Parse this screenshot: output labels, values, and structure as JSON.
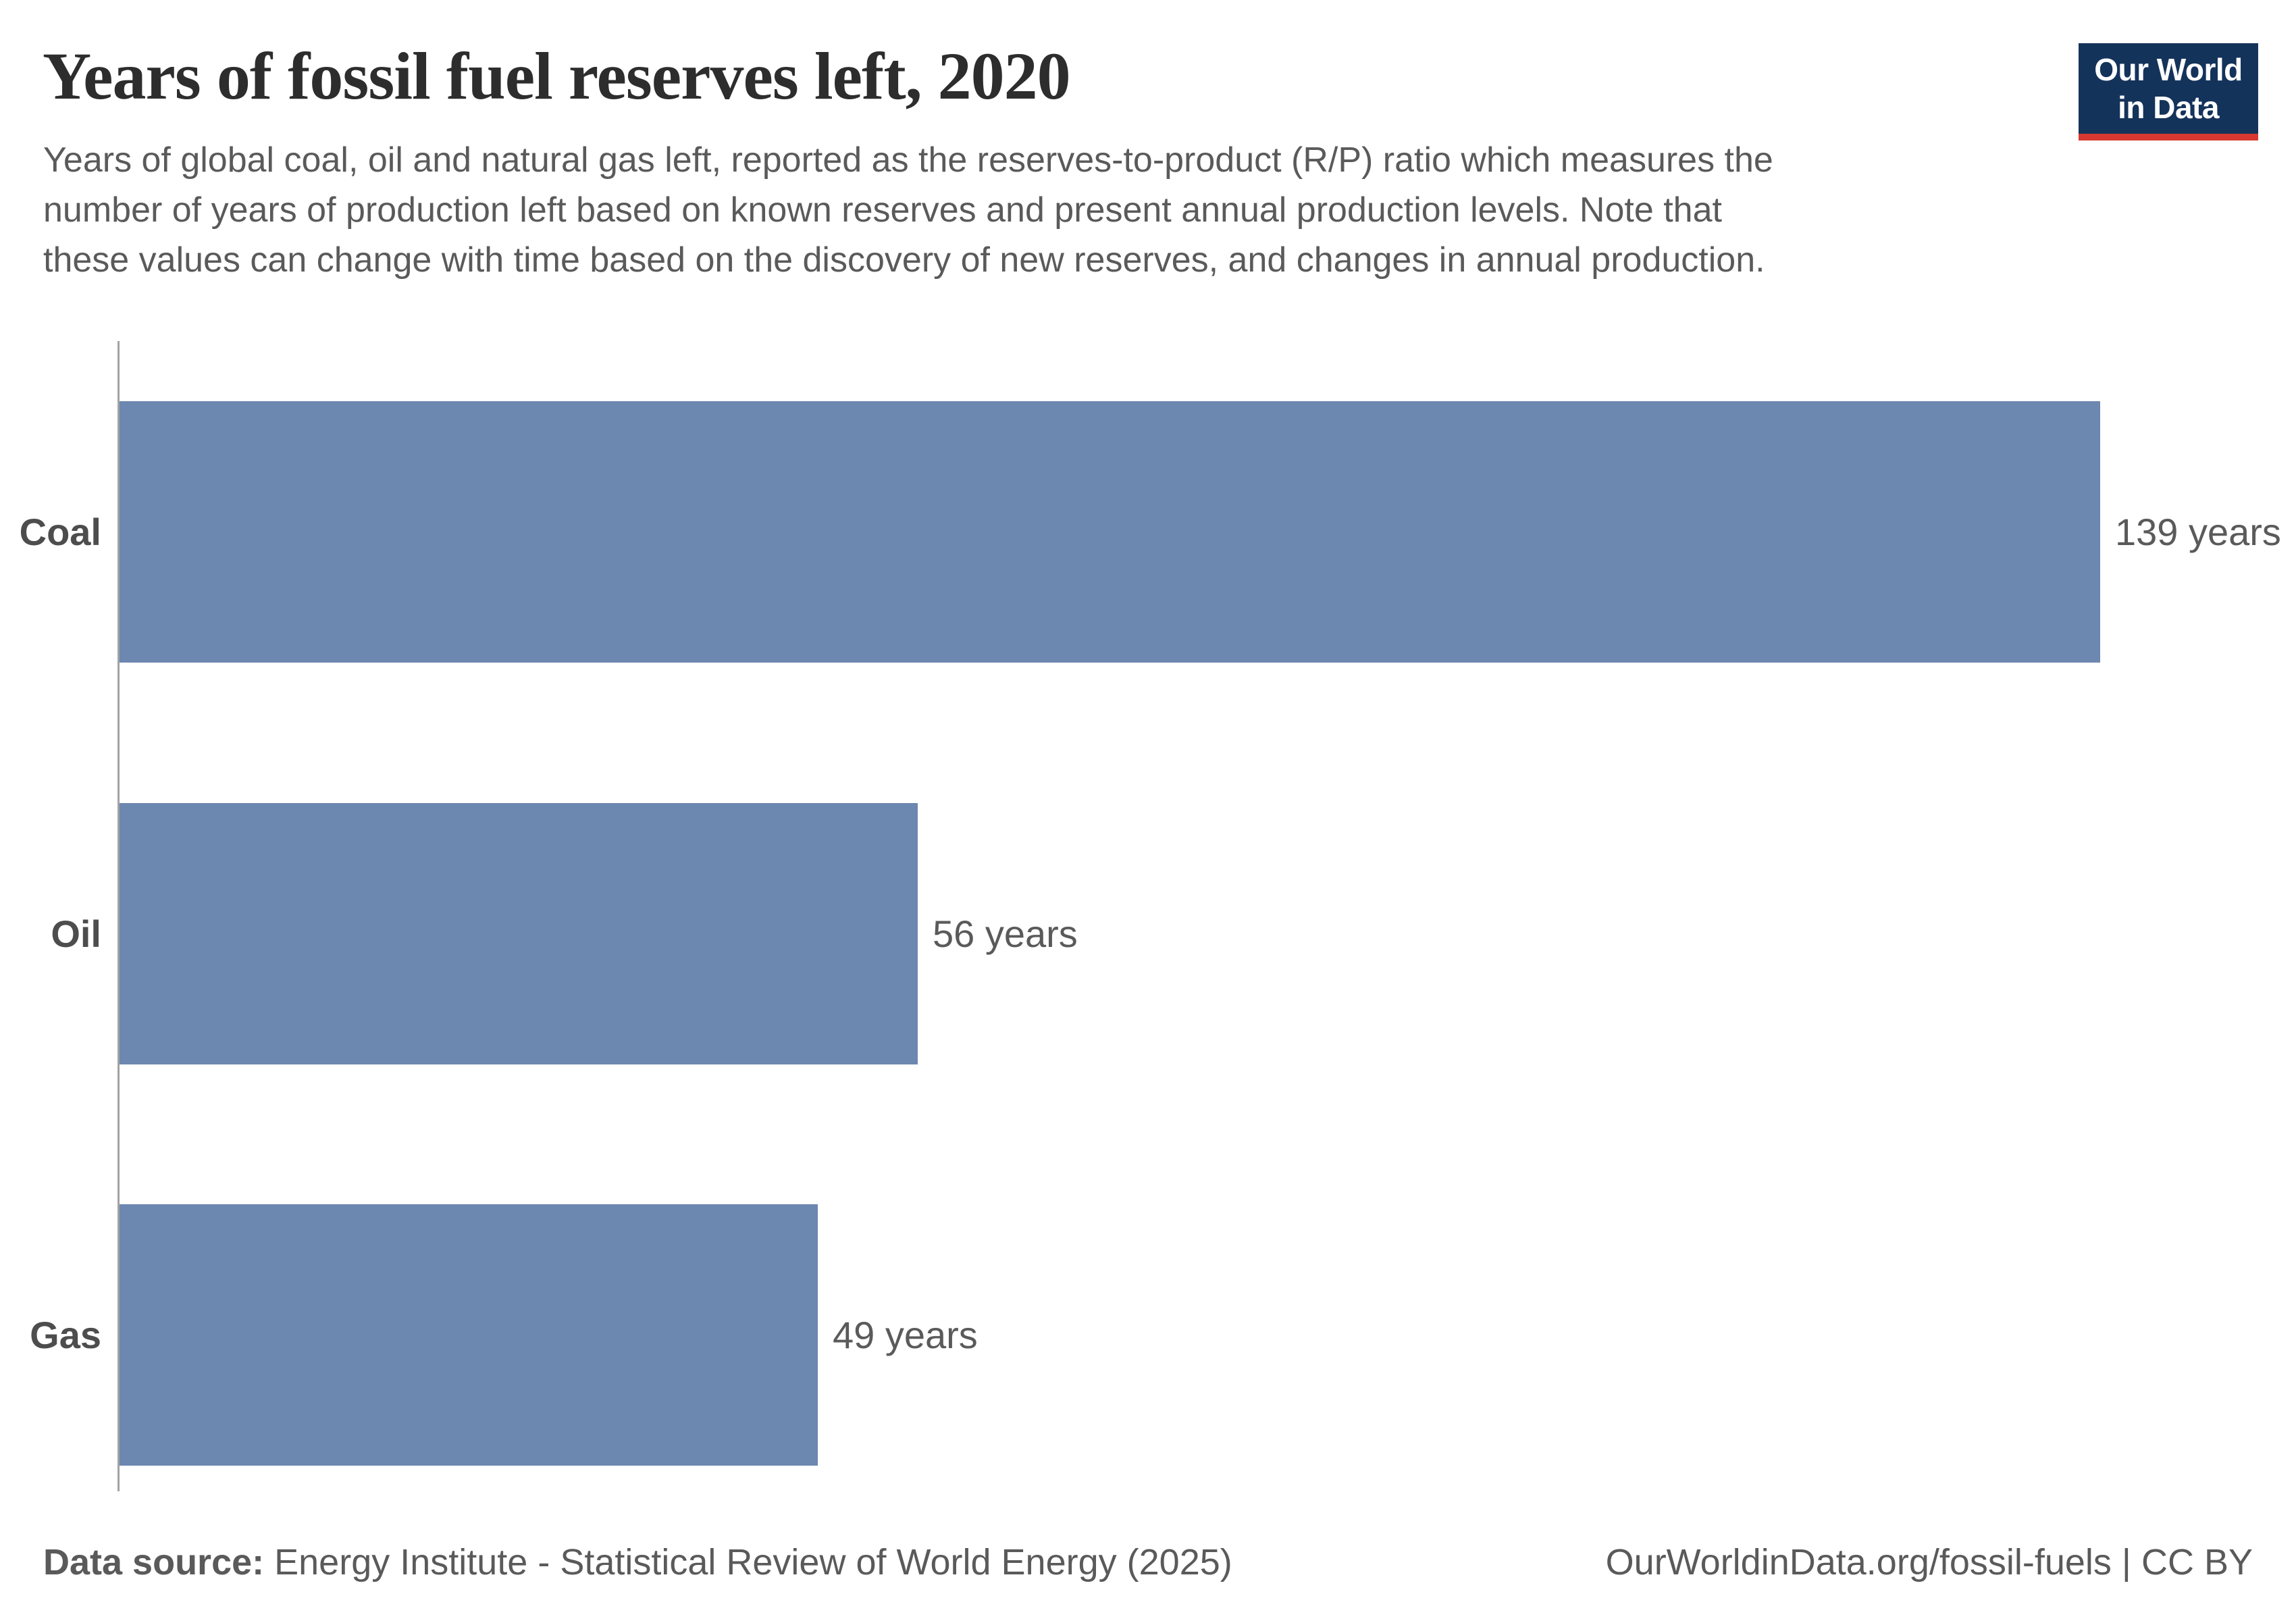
{
  "header": {
    "title": "Years of fossil fuel reserves left, 2020",
    "subtitle_lines": [
      "Years of global coal, oil and natural gas left, reported as the reserves-to-product (R/P) ratio which measures the",
      "number of years of production left based on known reserves and present annual production levels. Note that",
      "these values can change with time based on the discovery of new reserves, and changes in annual production."
    ],
    "logo": {
      "line1": "Our World",
      "line2": "in Data"
    }
  },
  "chart_data": {
    "type": "bar",
    "orientation": "horizontal",
    "title": "Years of fossil fuel reserves left, 2020",
    "categories": [
      "Coal",
      "Oil",
      "Gas"
    ],
    "values": [
      139,
      56,
      49
    ],
    "value_labels": [
      "139 years",
      "56 years",
      "49 years"
    ],
    "unit": "years",
    "xlim": [
      0,
      139
    ],
    "grid": false,
    "legend": "none"
  },
  "footer": {
    "source_label": "Data source:",
    "source_text": " Energy Institute - Statistical Review of World Energy (2025)",
    "link_text": "OurWorldinData.org/fossil-fuels | CC BY"
  },
  "colors": {
    "bar_color": "#6c87b0",
    "title_color": "#2d2d2d",
    "text_gray": "#5a5a5a",
    "entity_color": "#4d4d4d",
    "axis_color": "#a2a2a2",
    "logo_navy": "#14335b",
    "logo_red": "#d7382f"
  }
}
